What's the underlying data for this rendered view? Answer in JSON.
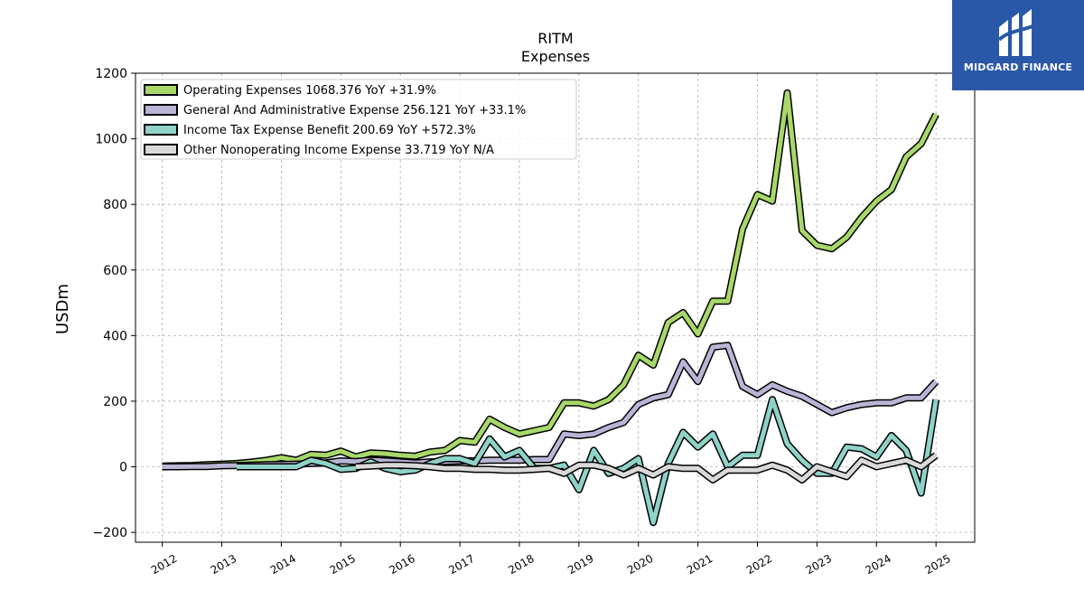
{
  "chart_data": {
    "type": "line",
    "title": "RITM",
    "subtitle": "Expenses",
    "ylabel": "USDm",
    "xlabel": "",
    "ylim": [
      -230,
      1200
    ],
    "xlim": [
      2011.55,
      2025.65
    ],
    "yticks": [
      -200,
      0,
      200,
      400,
      600,
      800,
      1000,
      1200
    ],
    "yticklabels": [
      "−200",
      "0",
      "200",
      "400",
      "600",
      "800",
      "1000",
      "1200"
    ],
    "xticks": [
      2012,
      2013,
      2014,
      2015,
      2016,
      2017,
      2018,
      2019,
      2020,
      2021,
      2022,
      2023,
      2024,
      2025
    ],
    "xticklabels": [
      "2012",
      "2013",
      "2014",
      "2015",
      "2016",
      "2017",
      "2018",
      "2019",
      "2020",
      "2021",
      "2022",
      "2023",
      "2024",
      "2025"
    ],
    "grid": true,
    "legend_position": "top-left",
    "series": [
      {
        "name": "Operating Expenses",
        "legend": "Operating Expenses  1068.376 YoY +31.9%",
        "color": "#a8d86a",
        "x": [
          2012.0,
          2012.25,
          2012.5,
          2012.75,
          2013.0,
          2013.25,
          2013.5,
          2013.75,
          2014.0,
          2014.25,
          2014.5,
          2014.75,
          2015.0,
          2015.25,
          2015.5,
          2015.75,
          2016.0,
          2016.25,
          2016.5,
          2016.75,
          2017.0,
          2017.25,
          2017.5,
          2017.75,
          2018.0,
          2018.25,
          2018.5,
          2018.75,
          2019.0,
          2019.25,
          2019.5,
          2019.75,
          2020.0,
          2020.25,
          2020.5,
          2020.75,
          2021.0,
          2021.25,
          2021.5,
          2021.75,
          2022.0,
          2022.25,
          2022.5,
          2022.75,
          2023.0,
          2023.25,
          2023.5,
          2023.75,
          2024.0,
          2024.25,
          2024.5,
          2024.75,
          2025.0
        ],
        "values": [
          2,
          3,
          4,
          6,
          8,
          10,
          14,
          20,
          28,
          20,
          38,
          35,
          48,
          30,
          42,
          40,
          35,
          32,
          45,
          50,
          80,
          75,
          145,
          120,
          100,
          110,
          120,
          195,
          195,
          185,
          205,
          250,
          340,
          310,
          440,
          470,
          405,
          505,
          505,
          725,
          830,
          810,
          1140,
          720,
          675,
          665,
          700,
          760,
          810,
          845,
          945,
          985,
          1075
        ]
      },
      {
        "name": "General And Administrative Expense",
        "legend": "General And Administrative Expense  256.121 YoY +33.1%",
        "color": "#b9b5d6",
        "x": [
          2012.0,
          2012.25,
          2012.5,
          2012.75,
          2013.0,
          2013.25,
          2013.5,
          2013.75,
          2014.0,
          2014.25,
          2014.5,
          2014.75,
          2015.0,
          2015.25,
          2015.5,
          2015.75,
          2016.0,
          2016.25,
          2016.5,
          2016.75,
          2017.0,
          2017.25,
          2017.5,
          2017.75,
          2018.0,
          2018.25,
          2018.5,
          2018.75,
          2019.0,
          2019.25,
          2019.5,
          2019.75,
          2020.0,
          2020.25,
          2020.5,
          2020.75,
          2021.0,
          2021.25,
          2021.5,
          2021.75,
          2022.0,
          2022.25,
          2022.5,
          2022.75,
          2023.0,
          2023.25,
          2023.5,
          2023.75,
          2024.0,
          2024.25,
          2024.5,
          2024.75,
          2025.0
        ],
        "values": [
          0,
          0,
          1,
          1,
          3,
          4,
          5,
          6,
          7,
          8,
          10,
          12,
          18,
          16,
          20,
          18,
          15,
          12,
          15,
          16,
          18,
          18,
          20,
          20,
          20,
          22,
          22,
          100,
          95,
          100,
          120,
          135,
          190,
          210,
          220,
          320,
          260,
          365,
          370,
          245,
          220,
          250,
          230,
          215,
          190,
          165,
          180,
          190,
          195,
          195,
          210,
          210,
          260
        ]
      },
      {
        "name": "Income Tax Expense Benefit",
        "legend": "Income Tax Expense Benefit  200.69 YoY +572.3%",
        "color": "#8fd2c8",
        "x": [
          2013.25,
          2013.5,
          2013.75,
          2014.0,
          2014.25,
          2014.5,
          2014.75,
          2015.0,
          2015.25,
          2015.5,
          2015.75,
          2016.0,
          2016.25,
          2016.5,
          2016.75,
          2017.0,
          2017.25,
          2017.5,
          2017.75,
          2018.0,
          2018.25,
          2018.5,
          2018.75,
          2019.0,
          2019.25,
          2019.5,
          2019.75,
          2020.0,
          2020.25,
          2020.5,
          2020.75,
          2021.0,
          2021.25,
          2021.5,
          2021.75,
          2022.0,
          2022.25,
          2022.5,
          2022.75,
          2023.0,
          2023.25,
          2023.5,
          2023.75,
          2024.0,
          2024.25,
          2024.5,
          2024.75,
          2025.0
        ],
        "values": [
          0,
          0,
          0,
          0,
          0,
          20,
          10,
          -8,
          -5,
          15,
          -5,
          -15,
          -10,
          10,
          25,
          25,
          10,
          85,
          30,
          50,
          -5,
          -5,
          5,
          -70,
          50,
          -20,
          -5,
          25,
          -170,
          10,
          105,
          60,
          100,
          0,
          35,
          35,
          205,
          70,
          20,
          -20,
          -20,
          60,
          55,
          30,
          95,
          50,
          -80,
          205
        ]
      },
      {
        "name": "Other Nonoperating Income Expense",
        "legend": "Other Nonoperating Income Expense  33.719 YoY N/A",
        "color": "#d9d9d9",
        "x": [
          2015.25,
          2015.5,
          2015.75,
          2016.0,
          2016.25,
          2016.5,
          2016.75,
          2017.0,
          2017.25,
          2017.5,
          2017.75,
          2018.0,
          2018.25,
          2018.5,
          2018.75,
          2019.0,
          2019.25,
          2019.5,
          2019.75,
          2020.0,
          2020.25,
          2020.5,
          2020.75,
          2021.0,
          2021.25,
          2021.5,
          2021.75,
          2022.0,
          2022.25,
          2022.5,
          2022.75,
          2023.0,
          2023.25,
          2023.5,
          2023.75,
          2024.0,
          2024.25,
          2024.5,
          2024.75,
          2025.0
        ],
        "values": [
          0,
          2,
          5,
          5,
          3,
          0,
          -5,
          -5,
          -8,
          -8,
          -10,
          -10,
          -8,
          -5,
          -20,
          5,
          5,
          -5,
          -25,
          -5,
          -25,
          0,
          -5,
          -5,
          -40,
          -10,
          -10,
          -10,
          5,
          -10,
          -40,
          0,
          -15,
          -30,
          20,
          0,
          10,
          20,
          0,
          35
        ]
      }
    ]
  },
  "logo": {
    "text": "MIDGARD FINANCE"
  }
}
